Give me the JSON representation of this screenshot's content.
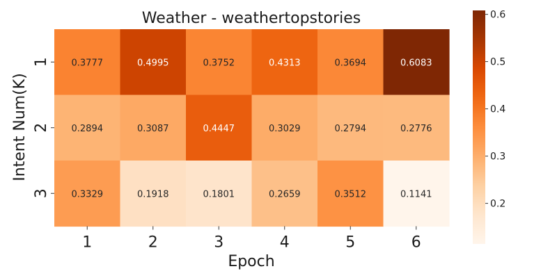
{
  "chart_data": {
    "type": "heatmap",
    "title": "Weather - weathertopstories",
    "xlabel": "Epoch",
    "ylabel": "Intent Num(K)",
    "x_categories": [
      "1",
      "2",
      "3",
      "4",
      "5",
      "6"
    ],
    "y_categories": [
      "1",
      "2",
      "3"
    ],
    "values": [
      [
        0.3777,
        0.4995,
        0.3752,
        0.4313,
        0.3694,
        0.6083
      ],
      [
        0.2894,
        0.3087,
        0.4447,
        0.3029,
        0.2794,
        0.2776
      ],
      [
        0.3329,
        0.1918,
        0.1801,
        0.2659,
        0.3512,
        0.1141
      ]
    ],
    "colormap": "Oranges",
    "colorbar": {
      "min": 0.1141,
      "max": 0.6083,
      "ticks": [
        "0.2",
        "0.3",
        "0.4",
        "0.5",
        "0.6"
      ]
    },
    "colors": {
      "low": "#fff5eb",
      "high": "#7f2704",
      "text_light": "#ffffff",
      "text_dark": "#262626"
    }
  }
}
